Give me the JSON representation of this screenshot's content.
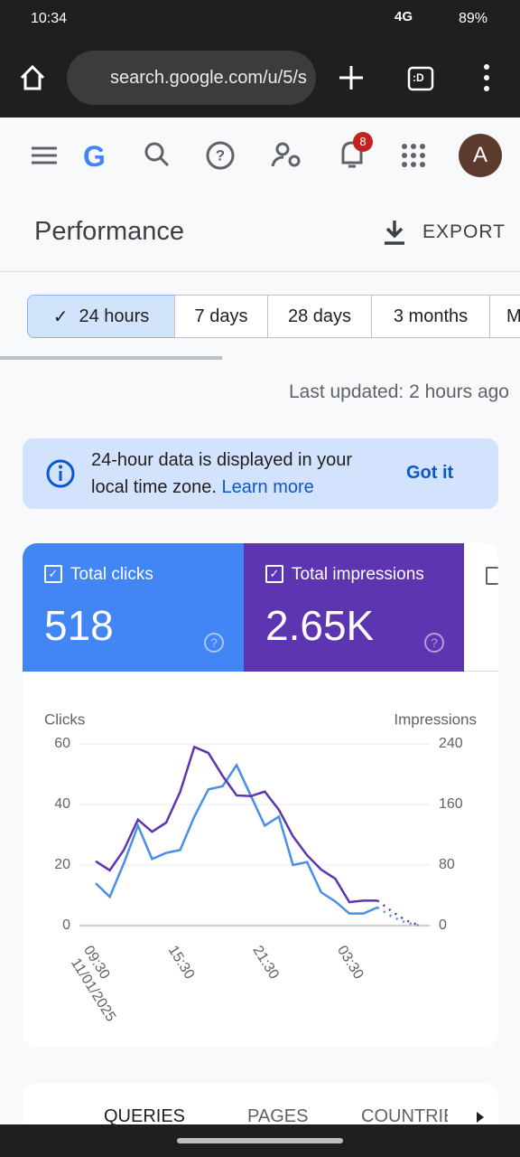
{
  "status_bar": {
    "time": "10:34",
    "network": "4G",
    "battery": "89%"
  },
  "browser": {
    "url": "search.google.com/u/5/s",
    "tab_label": ":D"
  },
  "header": {
    "logo": "G",
    "notification_count": "8",
    "avatar": "A"
  },
  "page": {
    "title": "Performance",
    "export": "EXPORT"
  },
  "tabs": [
    "24 hours",
    "7 days",
    "28 days",
    "3 months",
    "M"
  ],
  "last_updated": "Last updated: 2 hours ago",
  "banner": {
    "text": "24-hour data is displayed in your local time zone.",
    "link": "Learn more",
    "action": "Got it"
  },
  "metrics": [
    {
      "label": "Total clicks",
      "value": "518"
    },
    {
      "label": "Total impressions",
      "value": "2.65K"
    }
  ],
  "chart_data": {
    "type": "line",
    "y_label": "Clicks",
    "y2_label": "Impressions",
    "categories": [
      "09:30",
      null,
      null,
      null,
      null,
      null,
      "15:30",
      null,
      null,
      null,
      null,
      null,
      "21:30",
      null,
      null,
      null,
      null,
      null,
      "03:30",
      null,
      null,
      null,
      null,
      null
    ],
    "start_date": "11/01/2025",
    "series": [
      {
        "color": "#4a8fe7",
        "values": [
          14,
          9.5,
          20.6,
          33,
          22,
          24,
          25,
          36,
          45,
          46,
          53,
          43,
          33,
          36,
          20,
          21,
          11,
          8,
          4,
          4,
          6,
          3,
          1,
          0
        ]
      },
      {
        "color": "#5e35b1",
        "axis": "y2",
        "values": [
          85,
          73,
          100,
          140,
          124,
          136,
          177,
          236,
          228,
          198,
          172,
          171,
          177,
          153,
          118,
          93,
          74,
          62,
          31,
          33,
          33,
          19,
          7,
          0
        ]
      }
    ],
    "incomplete_from": 20,
    "ylim": [
      0,
      60
    ],
    "yticks": [
      0,
      20,
      40,
      60
    ],
    "y2lim": [
      0,
      240
    ],
    "y2ticks": [
      0,
      80,
      160,
      240
    ],
    "grid": true
  },
  "bottom_tabs": [
    "QUERIES",
    "PAGES",
    "COUNTRIE"
  ]
}
